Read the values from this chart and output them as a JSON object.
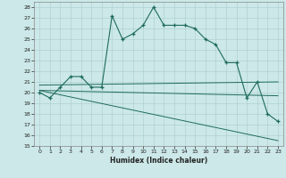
{
  "xlabel": "Humidex (Indice chaleur)",
  "xlim": [
    -0.5,
    23.5
  ],
  "ylim": [
    15,
    28.5
  ],
  "yticks": [
    15,
    16,
    17,
    18,
    19,
    20,
    21,
    22,
    23,
    24,
    25,
    26,
    27,
    28
  ],
  "xticks": [
    0,
    1,
    2,
    3,
    4,
    5,
    6,
    7,
    8,
    9,
    10,
    11,
    12,
    13,
    14,
    15,
    16,
    17,
    18,
    19,
    20,
    21,
    22,
    23
  ],
  "background_color": "#cce8e8",
  "grid_color": "#aacccc",
  "line_color": "#1e6b5e",
  "line1_x": [
    0,
    1,
    2,
    3,
    4,
    5,
    6,
    7,
    8,
    9,
    10,
    11,
    12,
    13,
    14,
    15,
    16,
    17,
    18,
    19,
    20,
    21,
    22,
    23
  ],
  "line1_y": [
    20.0,
    19.5,
    20.5,
    21.5,
    21.5,
    20.5,
    20.5,
    27.2,
    25.0,
    25.5,
    26.3,
    28.0,
    26.3,
    26.3,
    26.3,
    26.0,
    25.0,
    24.5,
    22.8,
    22.8,
    19.5,
    21.0,
    18.0,
    17.3
  ],
  "line2_x": [
    0,
    23
  ],
  "line2_y": [
    20.7,
    21.0
  ],
  "line3_x": [
    0,
    23
  ],
  "line3_y": [
    20.2,
    19.7
  ],
  "line4_x": [
    0,
    23
  ],
  "line4_y": [
    20.2,
    15.5
  ]
}
